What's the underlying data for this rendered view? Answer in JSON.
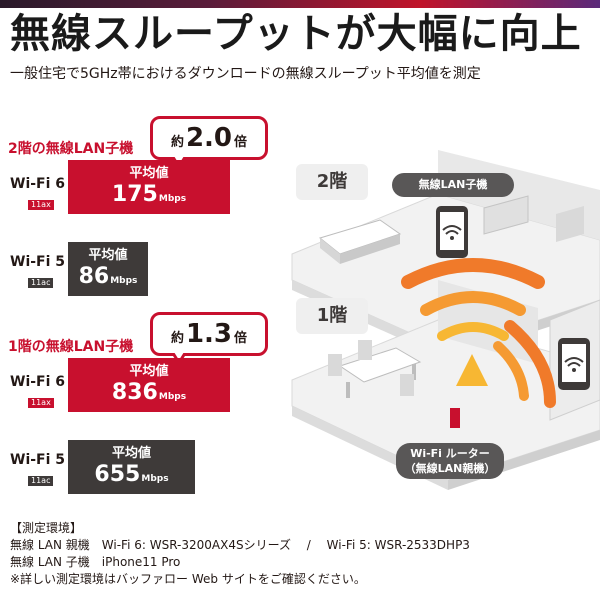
{
  "header": {
    "title": "無線スループットが大幅に向上",
    "subtitle": "一般住宅で5GHz帯におけるダウンロードの無線スループット平均値を測定"
  },
  "colors": {
    "accent_red": "#c8102e",
    "dark_gray": "#3e3a39",
    "wave_orange": "#f07a2a",
    "wave_yellow": "#f7b733"
  },
  "chart_data": {
    "type": "bar",
    "unit": "Mbps",
    "groups": [
      {
        "label": "2階の無線LAN子機",
        "ratio": {
          "prefix": "約",
          "value": "2.0",
          "suffix": "倍"
        },
        "bars": [
          {
            "name": "Wi-Fi 6",
            "standard": "11ax",
            "caption": "平均値",
            "value": 175
          },
          {
            "name": "Wi-Fi 5",
            "standard": "11ac",
            "caption": "平均値",
            "value": 86
          }
        ]
      },
      {
        "label": "1階の無線LAN子機",
        "ratio": {
          "prefix": "約",
          "value": "1.3",
          "suffix": "倍"
        },
        "bars": [
          {
            "name": "Wi-Fi 6",
            "standard": "11ax",
            "caption": "平均値",
            "value": 836
          },
          {
            "name": "Wi-Fi 5",
            "standard": "11ac",
            "caption": "平均値",
            "value": 655
          }
        ]
      }
    ]
  },
  "illustration": {
    "floor2_label": "2階",
    "floor1_label": "1階",
    "client_label": "無線LAN子機",
    "router_label_line1": "Wi-Fi ルーター",
    "router_label_line2": "（無線LAN親機）",
    "icons": [
      "smartphone-icon",
      "wifi-router-icon",
      "wifi-wave-icon"
    ]
  },
  "environment": {
    "heading": "【測定環境】",
    "line1": "無線 LAN 親機　Wi-Fi 6: WSR-3200AX4Sシリーズ　 /　 Wi-Fi 5: WSR-2533DHP3",
    "line2": "無線 LAN 子機　iPhone11 Pro",
    "note": "※詳しい測定環境はバッファロー Web サイトをご確認ください。"
  }
}
